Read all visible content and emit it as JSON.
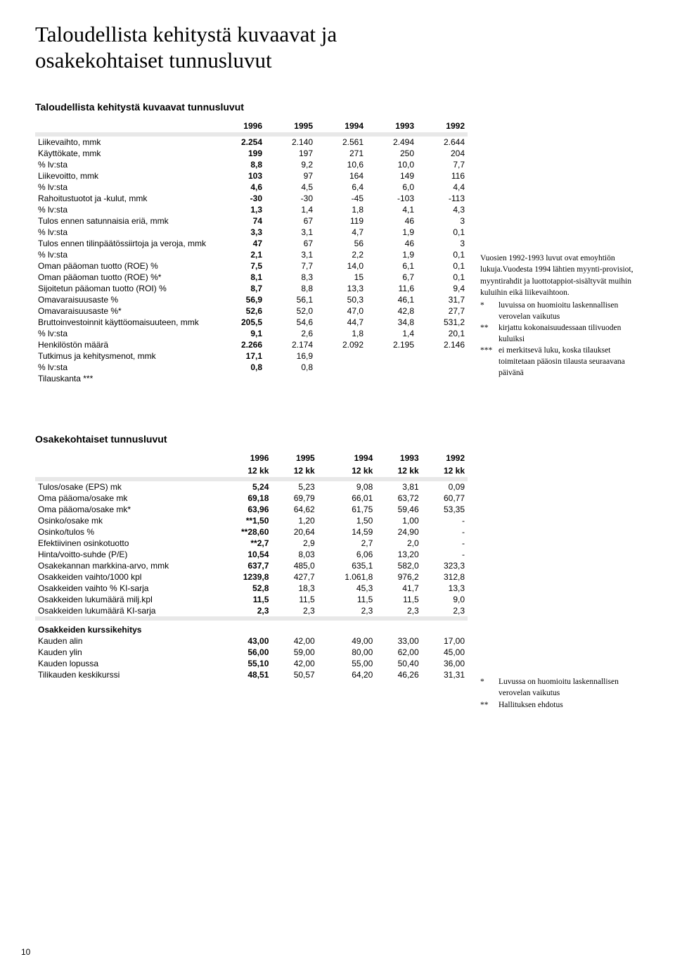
{
  "title_line1": "Taloudellista kehitystä kuvaavat ja",
  "title_line2": "osakekohtaiset tunnusluvut",
  "table1": {
    "title": "Taloudellista kehitystä kuvaavat tunnusluvut",
    "years": [
      "1996",
      "1995",
      "1994",
      "1993",
      "1992"
    ],
    "rows": [
      {
        "label": "Liikevaihto, mmk",
        "v": [
          "2.254",
          "2.140",
          "2.561",
          "2.494",
          "2.644"
        ]
      },
      {
        "label": "Käyttökate, mmk",
        "v": [
          "199",
          "197",
          "271",
          "250",
          "204"
        ]
      },
      {
        "label": "% lv:sta",
        "v": [
          "8,8",
          "9,2",
          "10,6",
          "10,0",
          "7,7"
        ]
      },
      {
        "label": "Liikevoitto, mmk",
        "v": [
          "103",
          "97",
          "164",
          "149",
          "116"
        ]
      },
      {
        "label": "% lv:sta",
        "v": [
          "4,6",
          "4,5",
          "6,4",
          "6,0",
          "4,4"
        ]
      },
      {
        "label": "Rahoitustuotot ja -kulut, mmk",
        "v": [
          "-30",
          "-30",
          "-45",
          "-103",
          "-113"
        ]
      },
      {
        "label": "% lv:sta",
        "v": [
          "1,3",
          "1,4",
          "1,8",
          "4,1",
          "4,3"
        ]
      },
      {
        "label": "Tulos ennen satunnaisia eriä, mmk",
        "v": [
          "74",
          "67",
          "119",
          "46",
          "3"
        ]
      },
      {
        "label": "% lv:sta",
        "v": [
          "3,3",
          "3,1",
          "4,7",
          "1,9",
          "0,1"
        ]
      },
      {
        "label": "Tulos ennen tilinpäätössiirtoja ja veroja, mmk",
        "v": [
          "47",
          "67",
          "56",
          "46",
          "3"
        ]
      },
      {
        "label": "% lv:sta",
        "v": [
          "2,1",
          "3,1",
          "2,2",
          "1,9",
          "0,1"
        ]
      },
      {
        "label": "Oman pääoman tuotto (ROE) %",
        "v": [
          "7,5",
          "7,7",
          "14,0",
          "6,1",
          "0,1"
        ]
      },
      {
        "label": "Oman pääoman tuotto (ROE) %*",
        "v": [
          "8,1",
          "8,3",
          "15",
          "6,7",
          "0,1"
        ]
      },
      {
        "label": "Sijoitetun pääoman tuotto (ROI) %",
        "v": [
          "8,7",
          "8,8",
          "13,3",
          "11,6",
          "9,4"
        ]
      },
      {
        "label": "Omavaraisuusaste %",
        "v": [
          "56,9",
          "56,1",
          "50,3",
          "46,1",
          "31,7"
        ]
      },
      {
        "label": "Omavaraisuusaste %*",
        "v": [
          "52,6",
          "52,0",
          "47,0",
          "42,8",
          "27,7"
        ]
      },
      {
        "label": "Bruttoinvestoinnit käyttöomaisuuteen, mmk",
        "v": [
          "205,5",
          "54,6",
          "44,7",
          "34,8",
          "531,2"
        ]
      },
      {
        "label": "% lv:sta",
        "v": [
          "9,1",
          "2,6",
          "1,8",
          "1,4",
          "20,1"
        ]
      },
      {
        "label": "Henkilöstön määrä",
        "v": [
          "2.266",
          "2.174",
          "2.092",
          "2.195",
          "2.146"
        ]
      },
      {
        "label": "Tutkimus ja kehitysmenot, mmk",
        "v": [
          "17,1",
          "16,9",
          "",
          "",
          ""
        ]
      },
      {
        "label": "% lv:sta",
        "v": [
          "0,8",
          "0,8",
          "",
          "",
          ""
        ]
      },
      {
        "label": "Tilauskanta ***",
        "v": [
          "",
          "",
          "",
          "",
          ""
        ]
      }
    ]
  },
  "notes1": {
    "intro": "Vuosien 1992-1993 luvut ovat emoyhtiön lukuja.Vuodesta 1994 lähtien myynti-provisiot, myyntirahdit ja luottotappiot-sisältyvät muihin kuluihin eikä liikevaihtoon.",
    "items": [
      {
        "star": "*",
        "text": "luvuissa on huomioitu laskennallisen verovelan vaikutus"
      },
      {
        "star": "**",
        "text": "kirjattu kokonaisuudessaan tilivuoden kuluiksi"
      },
      {
        "star": "***",
        "text": "ei merkitsevä luku, koska tilaukset toimitetaan pääosin tilausta seuraavana päivänä"
      }
    ]
  },
  "table2": {
    "title": "Osakekohtaiset tunnusluvut",
    "years": [
      "1996",
      "1995",
      "1994",
      "1993",
      "1992"
    ],
    "subyears": [
      "12 kk",
      "12 kk",
      "12 kk",
      "12 kk",
      "12 kk"
    ],
    "rows": [
      {
        "label": "Tulos/osake (EPS) mk",
        "v": [
          "5,24",
          "5,23",
          "9,08",
          "3,81",
          "0,09"
        ]
      },
      {
        "label": "Oma pääoma/osake mk",
        "v": [
          "69,18",
          "69,79",
          "66,01",
          "63,72",
          "60,77"
        ]
      },
      {
        "label": "Oma pääoma/osake mk*",
        "v": [
          "63,96",
          "64,62",
          "61,75",
          "59,46",
          "53,35"
        ]
      },
      {
        "label": "Osinko/osake mk",
        "v": [
          "**1,50",
          "1,20",
          "1,50",
          "1,00",
          "-"
        ]
      },
      {
        "label": "Osinko/tulos %",
        "v": [
          "**28,60",
          "20,64",
          "14,59",
          "24,90",
          "-"
        ]
      },
      {
        "label": "Efektiivinen osinkotuotto",
        "v": [
          "**2,7",
          "2,9",
          "2,7",
          "2,0",
          "-"
        ]
      },
      {
        "label": "Hinta/voitto-suhde (P/E)",
        "v": [
          "10,54",
          "8,03",
          "6,06",
          "13,20",
          "-"
        ]
      },
      {
        "label": "Osakekannan markkina-arvo, mmk",
        "v": [
          "637,7",
          "485,0",
          "635,1",
          "582,0",
          "323,3"
        ]
      },
      {
        "label": "Osakkeiden vaihto/1000 kpl",
        "v": [
          "1239,8",
          "427,7",
          "1.061,8",
          "976,2",
          "312,8"
        ]
      },
      {
        "label": "Osakkeiden vaihto % KI-sarja",
        "v": [
          "52,8",
          "18,3",
          "45,3",
          "41,7",
          "13,3"
        ]
      },
      {
        "label": "Osakkeiden lukumäärä milj.kpl",
        "v": [
          "11,5",
          "11,5",
          "11,5",
          "11,5",
          "9,0"
        ]
      },
      {
        "label": "Osakkeiden lukumäärä KI-sarja",
        "v": [
          "2,3",
          "2,3",
          "2,3",
          "2,3",
          "2,3"
        ]
      }
    ],
    "sub_title": "Osakkeiden kurssikehitys",
    "rows2": [
      {
        "label": "Kauden alin",
        "v": [
          "43,00",
          "42,00",
          "49,00",
          "33,00",
          "17,00"
        ]
      },
      {
        "label": "Kauden ylin",
        "v": [
          "56,00",
          "59,00",
          "80,00",
          "62,00",
          "45,00"
        ]
      },
      {
        "label": "Kauden lopussa",
        "v": [
          "55,10",
          "42,00",
          "55,00",
          "50,40",
          "36,00"
        ]
      },
      {
        "label": "Tilikauden keskikurssi",
        "v": [
          "48,51",
          "50,57",
          "64,20",
          "46,26",
          "31,31"
        ]
      }
    ]
  },
  "notes2": {
    "items": [
      {
        "star": "*",
        "text": "Luvussa on huomioitu laskennallisen verovelan vaikutus"
      },
      {
        "star": "**",
        "text": "Hallituksen ehdotus"
      }
    ]
  },
  "page_number": "10"
}
